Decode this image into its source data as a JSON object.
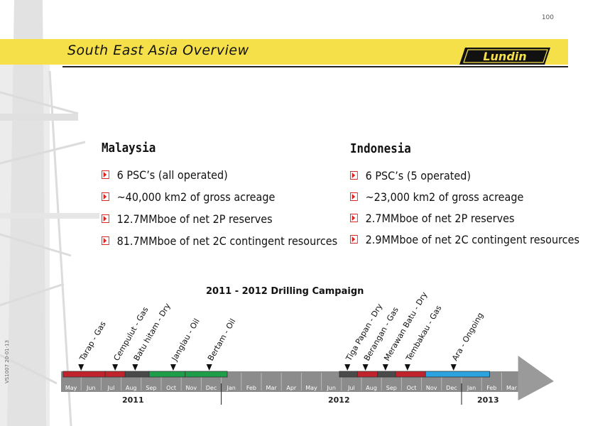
{
  "page_number": "100",
  "header": {
    "title": "South East Asia Overview",
    "logo_text": "Lundin"
  },
  "colors": {
    "header_bar": "#f5e04a",
    "bullet": "#dd2222",
    "timeline_base": "#8c8c8c",
    "gas": "#c0232c",
    "dry": "#4a4a4a",
    "oil": "#1e9e4a",
    "ongoing": "#2aa3e0"
  },
  "malaysia": {
    "heading": "Malaysia",
    "bullets": [
      "6 PSC’s (all operated)",
      "~40,000 km2 of gross acreage",
      "12.7MMboe of net 2P reserves",
      "81.7MMboe of net 2C contingent resources"
    ]
  },
  "indonesia": {
    "heading": "Indonesia",
    "bullets": [
      "6 PSC’s (5 operated)",
      "~23,000 km2 of gross acreage",
      "2.7MMboe of net 2P reserves",
      "2.9MMboe of net 2C contingent resources"
    ]
  },
  "campaign": {
    "title": "2011 - 2012 Drilling Campaign",
    "months": [
      "May",
      "Jun",
      "Jul",
      "Aug",
      "Sep",
      "Oct",
      "Nov",
      "Dec",
      "Jan",
      "Feb",
      "Mar",
      "Apr",
      "May",
      "Jun",
      "Jul",
      "Aug",
      "Sep",
      "Oct",
      "Nov",
      "Dec",
      "Jan",
      "Feb",
      "Mar"
    ],
    "years": [
      "2011",
      "2012",
      "2013"
    ],
    "wells": [
      {
        "label": "Tarap - Gas",
        "status": "gas",
        "start": 0.1,
        "end": 2.2,
        "marker": 1.0
      },
      {
        "label": "Cempulut - Gas",
        "status": "gas",
        "start": 2.2,
        "end": 3.2,
        "marker": 2.7
      },
      {
        "label": "Batu hitam - Dry",
        "status": "dry",
        "start": 3.2,
        "end": 4.4,
        "marker": 3.7
      },
      {
        "label": "Janglau - Oil",
        "status": "oil",
        "start": 4.4,
        "end": 6.2,
        "marker": 5.6
      },
      {
        "label": "Bertam - Oil",
        "status": "oil",
        "start": 6.2,
        "end": 8.3,
        "marker": 7.4
      },
      {
        "label": "Tiga Papan - Dry",
        "status": "dry",
        "start": 13.9,
        "end": 14.8,
        "marker": 14.3
      },
      {
        "label": "Berangan - Gas",
        "status": "gas",
        "start": 14.8,
        "end": 15.8,
        "marker": 15.2
      },
      {
        "label": "Merawan Batu - Dry",
        "status": "dry",
        "start": 15.8,
        "end": 16.7,
        "marker": 16.2
      },
      {
        "label": "Tembakau - Gas",
        "status": "gas",
        "start": 16.7,
        "end": 18.2,
        "marker": 17.3
      },
      {
        "label": "Ara - Ongoing",
        "status": "ongoing",
        "start": 18.2,
        "end": 21.4,
        "marker": 19.6
      }
    ]
  },
  "side_note": "VS1007 20-01-13"
}
